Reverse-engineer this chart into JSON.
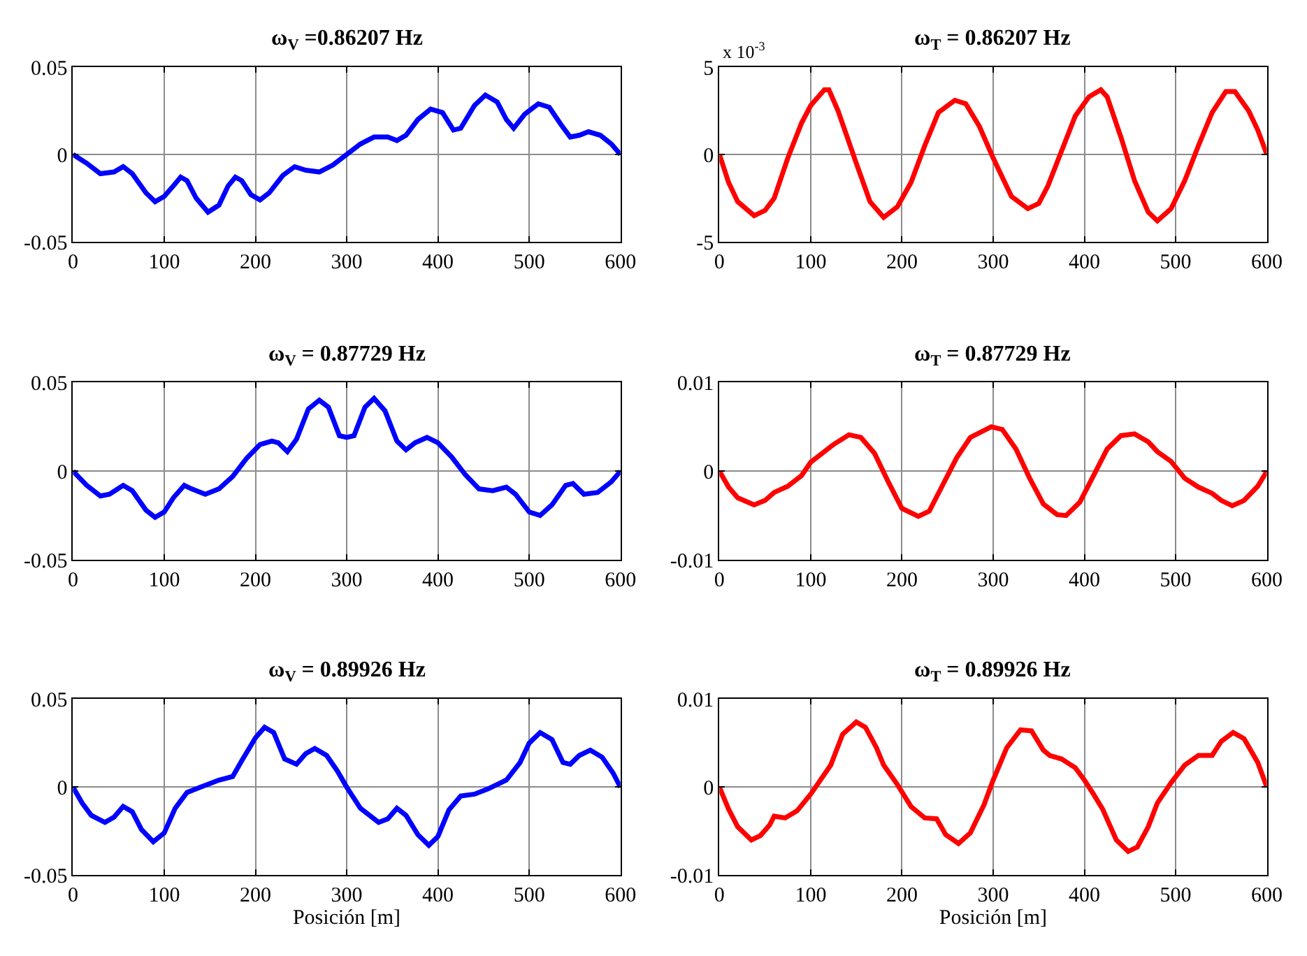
{
  "chart_data": [
    {
      "type": "line",
      "title": "ω$_{V}$ =0.86207 Hz",
      "xlim": [
        0,
        600
      ],
      "xticks": [
        0,
        100,
        200,
        300,
        400,
        500,
        600
      ],
      "ylim": [
        -0.05,
        0.05
      ],
      "yticks": [
        -0.05,
        0,
        0.05
      ],
      "grid": true,
      "series": [
        {
          "color": "#0000ff",
          "x": [
            0,
            15,
            30,
            45,
            55,
            65,
            80,
            90,
            100,
            110,
            118,
            125,
            135,
            148,
            160,
            170,
            178,
            185,
            195,
            205,
            215,
            230,
            243,
            255,
            270,
            285,
            300,
            315,
            330,
            345,
            355,
            365,
            378,
            392,
            405,
            417,
            425,
            440,
            452,
            465,
            475,
            483,
            495,
            510,
            522,
            535,
            545,
            555,
            565,
            578,
            590,
            600
          ],
          "values": [
            0,
            -0.005,
            -0.011,
            -0.01,
            -0.007,
            -0.011,
            -0.022,
            -0.027,
            -0.024,
            -0.018,
            -0.013,
            -0.015,
            -0.025,
            -0.033,
            -0.029,
            -0.018,
            -0.013,
            -0.015,
            -0.023,
            -0.026,
            -0.022,
            -0.012,
            -0.007,
            -0.009,
            -0.01,
            -0.006,
            0,
            0.006,
            0.01,
            0.01,
            0.008,
            0.011,
            0.02,
            0.026,
            0.024,
            0.014,
            0.015,
            0.028,
            0.034,
            0.03,
            0.02,
            0.015,
            0.023,
            0.029,
            0.027,
            0.017,
            0.01,
            0.011,
            0.013,
            0.011,
            0.006,
            0
          ]
        }
      ]
    },
    {
      "type": "line",
      "title": "ω$_{T}$ = 0.86207 Hz",
      "annotations": [
        "x 10$^{-3}$"
      ],
      "xlim": [
        0,
        600
      ],
      "xticks": [
        0,
        100,
        200,
        300,
        400,
        500,
        600
      ],
      "ylim": [
        -5,
        5
      ],
      "yticks": [
        -5,
        0,
        5
      ],
      "grid": true,
      "series": [
        {
          "color": "#ff0000",
          "x": [
            0,
            10,
            20,
            38,
            50,
            60,
            75,
            90,
            100,
            115,
            120,
            130,
            150,
            165,
            180,
            195,
            210,
            225,
            240,
            258,
            270,
            285,
            300,
            320,
            338,
            350,
            360,
            375,
            390,
            405,
            418,
            425,
            440,
            455,
            470,
            480,
            495,
            510,
            525,
            540,
            555,
            565,
            580,
            590,
            600
          ],
          "values": [
            0,
            -1.6,
            -2.7,
            -3.5,
            -3.2,
            -2.5,
            -0.2,
            1.8,
            2.8,
            3.7,
            3.7,
            2.5,
            -0.5,
            -2.7,
            -3.6,
            -3.0,
            -1.6,
            0.5,
            2.4,
            3.1,
            2.9,
            1.6,
            -0.2,
            -2.4,
            -3.1,
            -2.8,
            -1.8,
            0.2,
            2.2,
            3.3,
            3.7,
            3.3,
            1.0,
            -1.5,
            -3.3,
            -3.8,
            -3.1,
            -1.5,
            0.5,
            2.4,
            3.6,
            3.6,
            2.5,
            1.4,
            0
          ]
        }
      ]
    },
    {
      "type": "line",
      "title": "ω$_{V}$ = 0.87729 Hz",
      "xlim": [
        0,
        600
      ],
      "xticks": [
        0,
        100,
        200,
        300,
        400,
        500,
        600
      ],
      "ylim": [
        -0.05,
        0.05
      ],
      "yticks": [
        -0.05,
        0,
        0.05
      ],
      "grid": true,
      "series": [
        {
          "color": "#0000ff",
          "x": [
            0,
            15,
            30,
            40,
            55,
            65,
            80,
            90,
            100,
            110,
            122,
            130,
            145,
            160,
            175,
            190,
            205,
            218,
            225,
            235,
            245,
            258,
            270,
            280,
            292,
            300,
            308,
            320,
            330,
            342,
            355,
            365,
            375,
            388,
            400,
            415,
            430,
            445,
            460,
            475,
            485,
            500,
            512,
            525,
            540,
            548,
            560,
            575,
            590,
            600
          ],
          "values": [
            0,
            -0.008,
            -0.014,
            -0.013,
            -0.008,
            -0.011,
            -0.022,
            -0.026,
            -0.023,
            -0.015,
            -0.008,
            -0.01,
            -0.013,
            -0.01,
            -0.003,
            0.007,
            0.015,
            0.017,
            0.016,
            0.011,
            0.018,
            0.035,
            0.04,
            0.036,
            0.02,
            0.019,
            0.02,
            0.036,
            0.041,
            0.034,
            0.017,
            0.012,
            0.016,
            0.019,
            0.016,
            0.008,
            -0.002,
            -0.01,
            -0.011,
            -0.009,
            -0.013,
            -0.023,
            -0.025,
            -0.019,
            -0.008,
            -0.007,
            -0.013,
            -0.012,
            -0.006,
            0
          ]
        }
      ]
    },
    {
      "type": "line",
      "title": "ω$_{T}$ = 0.87729 Hz",
      "xlim": [
        0,
        600
      ],
      "xticks": [
        0,
        100,
        200,
        300,
        400,
        500,
        600
      ],
      "ylim": [
        -0.01,
        0.01
      ],
      "yticks": [
        -0.01,
        0,
        0.01
      ],
      "grid": true,
      "series": [
        {
          "color": "#ff0000",
          "x": [
            0,
            10,
            20,
            38,
            50,
            60,
            75,
            90,
            100,
            115,
            125,
            142,
            155,
            170,
            185,
            200,
            218,
            230,
            245,
            260,
            275,
            298,
            310,
            325,
            340,
            355,
            370,
            380,
            395,
            410,
            425,
            440,
            455,
            470,
            480,
            495,
            510,
            525,
            540,
            550,
            562,
            575,
            590,
            600
          ],
          "values": [
            0,
            -0.0018,
            -0.003,
            -0.0038,
            -0.0033,
            -0.0024,
            -0.0017,
            -0.0005,
            0.001,
            0.0022,
            0.003,
            0.0041,
            0.0038,
            0.002,
            -0.0012,
            -0.0042,
            -0.0051,
            -0.0045,
            -0.0015,
            0.0015,
            0.0038,
            0.005,
            0.0047,
            0.0025,
            -0.0008,
            -0.0037,
            -0.0049,
            -0.005,
            -0.0035,
            -0.0005,
            0.0025,
            0.004,
            0.0042,
            0.0033,
            0.0022,
            0.0011,
            -0.0008,
            -0.0018,
            -0.0025,
            -0.0033,
            -0.0039,
            -0.0033,
            -0.0017,
            0
          ]
        }
      ]
    },
    {
      "type": "line",
      "title": "ω$_{V}$ = 0.89926 Hz",
      "xlabel": "Posición [m]",
      "xlim": [
        0,
        600
      ],
      "xticks": [
        0,
        100,
        200,
        300,
        400,
        500,
        600
      ],
      "ylim": [
        -0.05,
        0.05
      ],
      "yticks": [
        -0.05,
        0,
        0.05
      ],
      "grid": true,
      "series": [
        {
          "color": "#0000ff",
          "x": [
            0,
            10,
            20,
            35,
            45,
            55,
            65,
            75,
            88,
            100,
            112,
            125,
            140,
            160,
            175,
            185,
            200,
            210,
            220,
            232,
            245,
            255,
            265,
            278,
            290,
            300,
            315,
            335,
            345,
            355,
            365,
            378,
            390,
            400,
            412,
            425,
            440,
            455,
            475,
            490,
            500,
            512,
            525,
            537,
            545,
            555,
            567,
            580,
            592,
            600
          ],
          "values": [
            0,
            -0.009,
            -0.016,
            -0.02,
            -0.017,
            -0.011,
            -0.014,
            -0.024,
            -0.031,
            -0.026,
            -0.012,
            -0.003,
            0.0,
            0.004,
            0.006,
            0.015,
            0.028,
            0.034,
            0.031,
            0.016,
            0.013,
            0.019,
            0.022,
            0.018,
            0.009,
            0,
            -0.012,
            -0.02,
            -0.018,
            -0.012,
            -0.016,
            -0.027,
            -0.033,
            -0.028,
            -0.013,
            -0.005,
            -0.004,
            -0.001,
            0.004,
            0.014,
            0.025,
            0.031,
            0.027,
            0.014,
            0.013,
            0.018,
            0.021,
            0.017,
            0.008,
            0
          ]
        }
      ]
    },
    {
      "type": "line",
      "title": "ω$_{T}$ = 0.89926 Hz",
      "xlabel": "Posición [m]",
      "xlim": [
        0,
        600
      ],
      "xticks": [
        0,
        100,
        200,
        300,
        400,
        500,
        600
      ],
      "ylim": [
        -0.01,
        0.01
      ],
      "yticks": [
        -0.01,
        0,
        0.01
      ],
      "grid": true,
      "series": [
        {
          "color": "#ff0000",
          "x": [
            0,
            10,
            20,
            35,
            45,
            55,
            60,
            72,
            85,
            100,
            110,
            122,
            135,
            150,
            160,
            172,
            180,
            195,
            210,
            225,
            238,
            248,
            262,
            275,
            290,
            300,
            315,
            330,
            342,
            355,
            362,
            375,
            390,
            400,
            410,
            420,
            435,
            448,
            458,
            470,
            480,
            495,
            510,
            525,
            540,
            550,
            563,
            575,
            590,
            600
          ],
          "values": [
            0,
            -0.0025,
            -0.0045,
            -0.006,
            -0.0055,
            -0.0043,
            -0.0033,
            -0.0035,
            -0.0027,
            -0.0008,
            0.0007,
            0.0025,
            0.006,
            0.0074,
            0.0068,
            0.0045,
            0.0025,
            0.0003,
            -0.0022,
            -0.0035,
            -0.0036,
            -0.0054,
            -0.0064,
            -0.0052,
            -0.002,
            0.0008,
            0.0045,
            0.0065,
            0.0064,
            0.0042,
            0.0036,
            0.0032,
            0.0022,
            0.0008,
            -0.0008,
            -0.0025,
            -0.006,
            -0.0073,
            -0.0068,
            -0.0045,
            -0.0018,
            0.0005,
            0.0025,
            0.0036,
            0.0036,
            0.0052,
            0.0062,
            0.0055,
            0.0028,
            0
          ]
        }
      ]
    }
  ]
}
